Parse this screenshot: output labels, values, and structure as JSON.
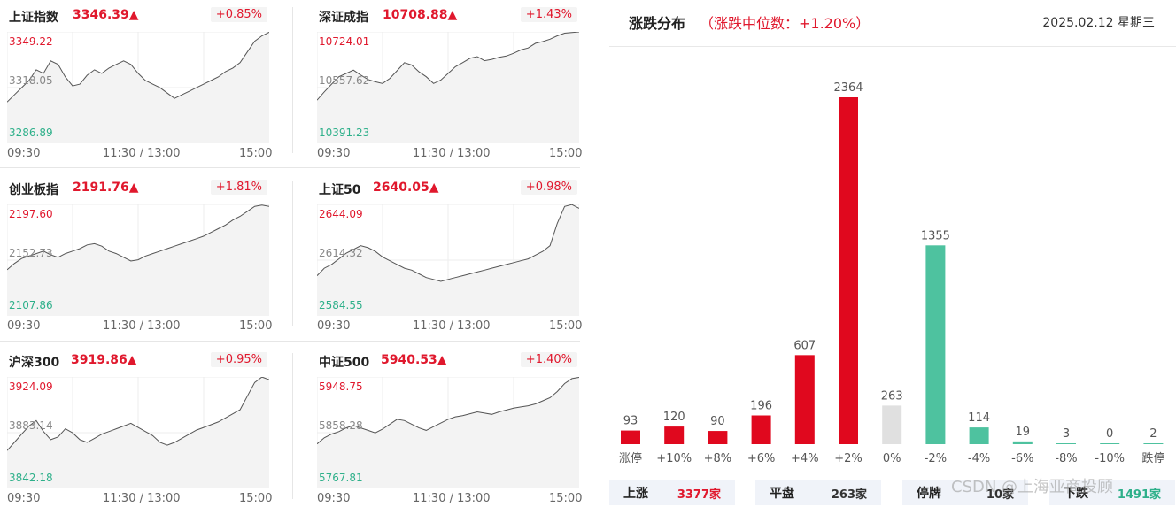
{
  "indices": [
    {
      "name": "上证指数",
      "value": "3346.39▲",
      "change": "+0.85%",
      "high": "3349.22",
      "mid": "3318.05",
      "low": "3286.89",
      "series": [
        3310,
        3314,
        3318,
        3322,
        3328,
        3326,
        3333,
        3331,
        3324,
        3319,
        3320,
        3325,
        3328,
        3326,
        3329,
        3331,
        3333,
        3331,
        3326,
        3322,
        3320,
        3318,
        3315,
        3312,
        3314,
        3316,
        3318,
        3320,
        3322,
        3324,
        3327,
        3329,
        3332,
        3338,
        3344,
        3347,
        3349
      ]
    },
    {
      "name": "深证成指",
      "value": "10708.88▲",
      "change": "+1.43%",
      "high": "10724.01",
      "mid": "10557.62",
      "low": "10391.23",
      "series": [
        10520,
        10545,
        10568,
        10590,
        10600,
        10610,
        10595,
        10582,
        10575,
        10570,
        10585,
        10608,
        10632,
        10625,
        10605,
        10590,
        10570,
        10580,
        10600,
        10620,
        10632,
        10645,
        10650,
        10638,
        10642,
        10648,
        10652,
        10660,
        10670,
        10676,
        10690,
        10695,
        10702,
        10712,
        10720,
        10722,
        10724
      ]
    },
    {
      "name": "创业板指",
      "value": "2191.76▲",
      "change": "+1.81%",
      "high": "2197.60",
      "mid": "2152.73",
      "low": "2107.86",
      "series": [
        2145,
        2150,
        2154,
        2156,
        2158,
        2160,
        2157,
        2155,
        2158,
        2160,
        2162,
        2165,
        2166,
        2164,
        2160,
        2158,
        2155,
        2152,
        2153,
        2156,
        2158,
        2160,
        2162,
        2164,
        2166,
        2168,
        2170,
        2172,
        2175,
        2178,
        2181,
        2185,
        2188,
        2192,
        2196,
        2197,
        2196
      ]
    },
    {
      "name": "上证50",
      "value": "2640.05▲",
      "change": "+0.98%",
      "high": "2644.09",
      "mid": "2614.32",
      "low": "2584.55",
      "series": [
        2606,
        2610,
        2612,
        2615,
        2618,
        2620,
        2622,
        2621,
        2619,
        2616,
        2614,
        2612,
        2610,
        2609,
        2607,
        2605,
        2604,
        2603,
        2604,
        2605,
        2606,
        2607,
        2608,
        2609,
        2610,
        2611,
        2612,
        2613,
        2614,
        2615,
        2617,
        2619,
        2622,
        2634,
        2643,
        2644,
        2642
      ]
    },
    {
      "name": "沪深300",
      "value": "3919.86▲",
      "change": "+0.95%",
      "high": "3924.09",
      "mid": "3883.14",
      "low": "3842.18",
      "series": [
        3870,
        3876,
        3882,
        3888,
        3892,
        3884,
        3878,
        3880,
        3886,
        3883,
        3878,
        3876,
        3879,
        3882,
        3884,
        3886,
        3888,
        3890,
        3887,
        3884,
        3881,
        3876,
        3874,
        3876,
        3879,
        3882,
        3885,
        3887,
        3889,
        3891,
        3894,
        3897,
        3900,
        3910,
        3920,
        3924,
        3922
      ]
    },
    {
      "name": "中证500",
      "value": "5940.53▲",
      "change": "+1.40%",
      "high": "5948.75",
      "mid": "5858.28",
      "low": "5767.81",
      "series": [
        5840,
        5850,
        5856,
        5860,
        5866,
        5870,
        5866,
        5862,
        5858,
        5864,
        5872,
        5880,
        5878,
        5872,
        5866,
        5862,
        5868,
        5874,
        5880,
        5884,
        5886,
        5889,
        5892,
        5890,
        5888,
        5892,
        5895,
        5898,
        5900,
        5902,
        5905,
        5910,
        5915,
        5925,
        5938,
        5946,
        5948
      ]
    }
  ],
  "axis_times": [
    "09:30",
    "11:30 / 13:00",
    "15:00"
  ],
  "distribution": {
    "title": "涨跌分布",
    "subtitle": "（涨跌中位数：+1.20%）",
    "date": "2025.02.12 星期三"
  },
  "chart_data": {
    "type": "bar",
    "categories": [
      "涨停",
      "+10%",
      "+8%",
      "+6%",
      "+4%",
      "+2%",
      "0%",
      "-2%",
      "-4%",
      "-6%",
      "-8%",
      "-10%",
      "跌停"
    ],
    "values": [
      93,
      120,
      90,
      196,
      607,
      2364,
      263,
      1355,
      114,
      19,
      3,
      0,
      2
    ],
    "colors": [
      "#e0081e",
      "#e0081e",
      "#e0081e",
      "#e0081e",
      "#e0081e",
      "#e0081e",
      "#e0e0e0",
      "#4ec29f",
      "#4ec29f",
      "#4ec29f",
      "#4ec29f",
      "#4ec29f",
      "#4ec29f"
    ]
  },
  "footer": [
    {
      "label": "上涨",
      "value": "3377家",
      "color": "#e0182d"
    },
    {
      "label": "平盘",
      "value": "263家",
      "color": "#333333"
    },
    {
      "label": "停牌",
      "value": "10家",
      "color": "#333333"
    },
    {
      "label": "下跌",
      "value": "1491家",
      "color": "#2eb08a"
    }
  ],
  "watermark": "CSDN @上海亚商投顾"
}
